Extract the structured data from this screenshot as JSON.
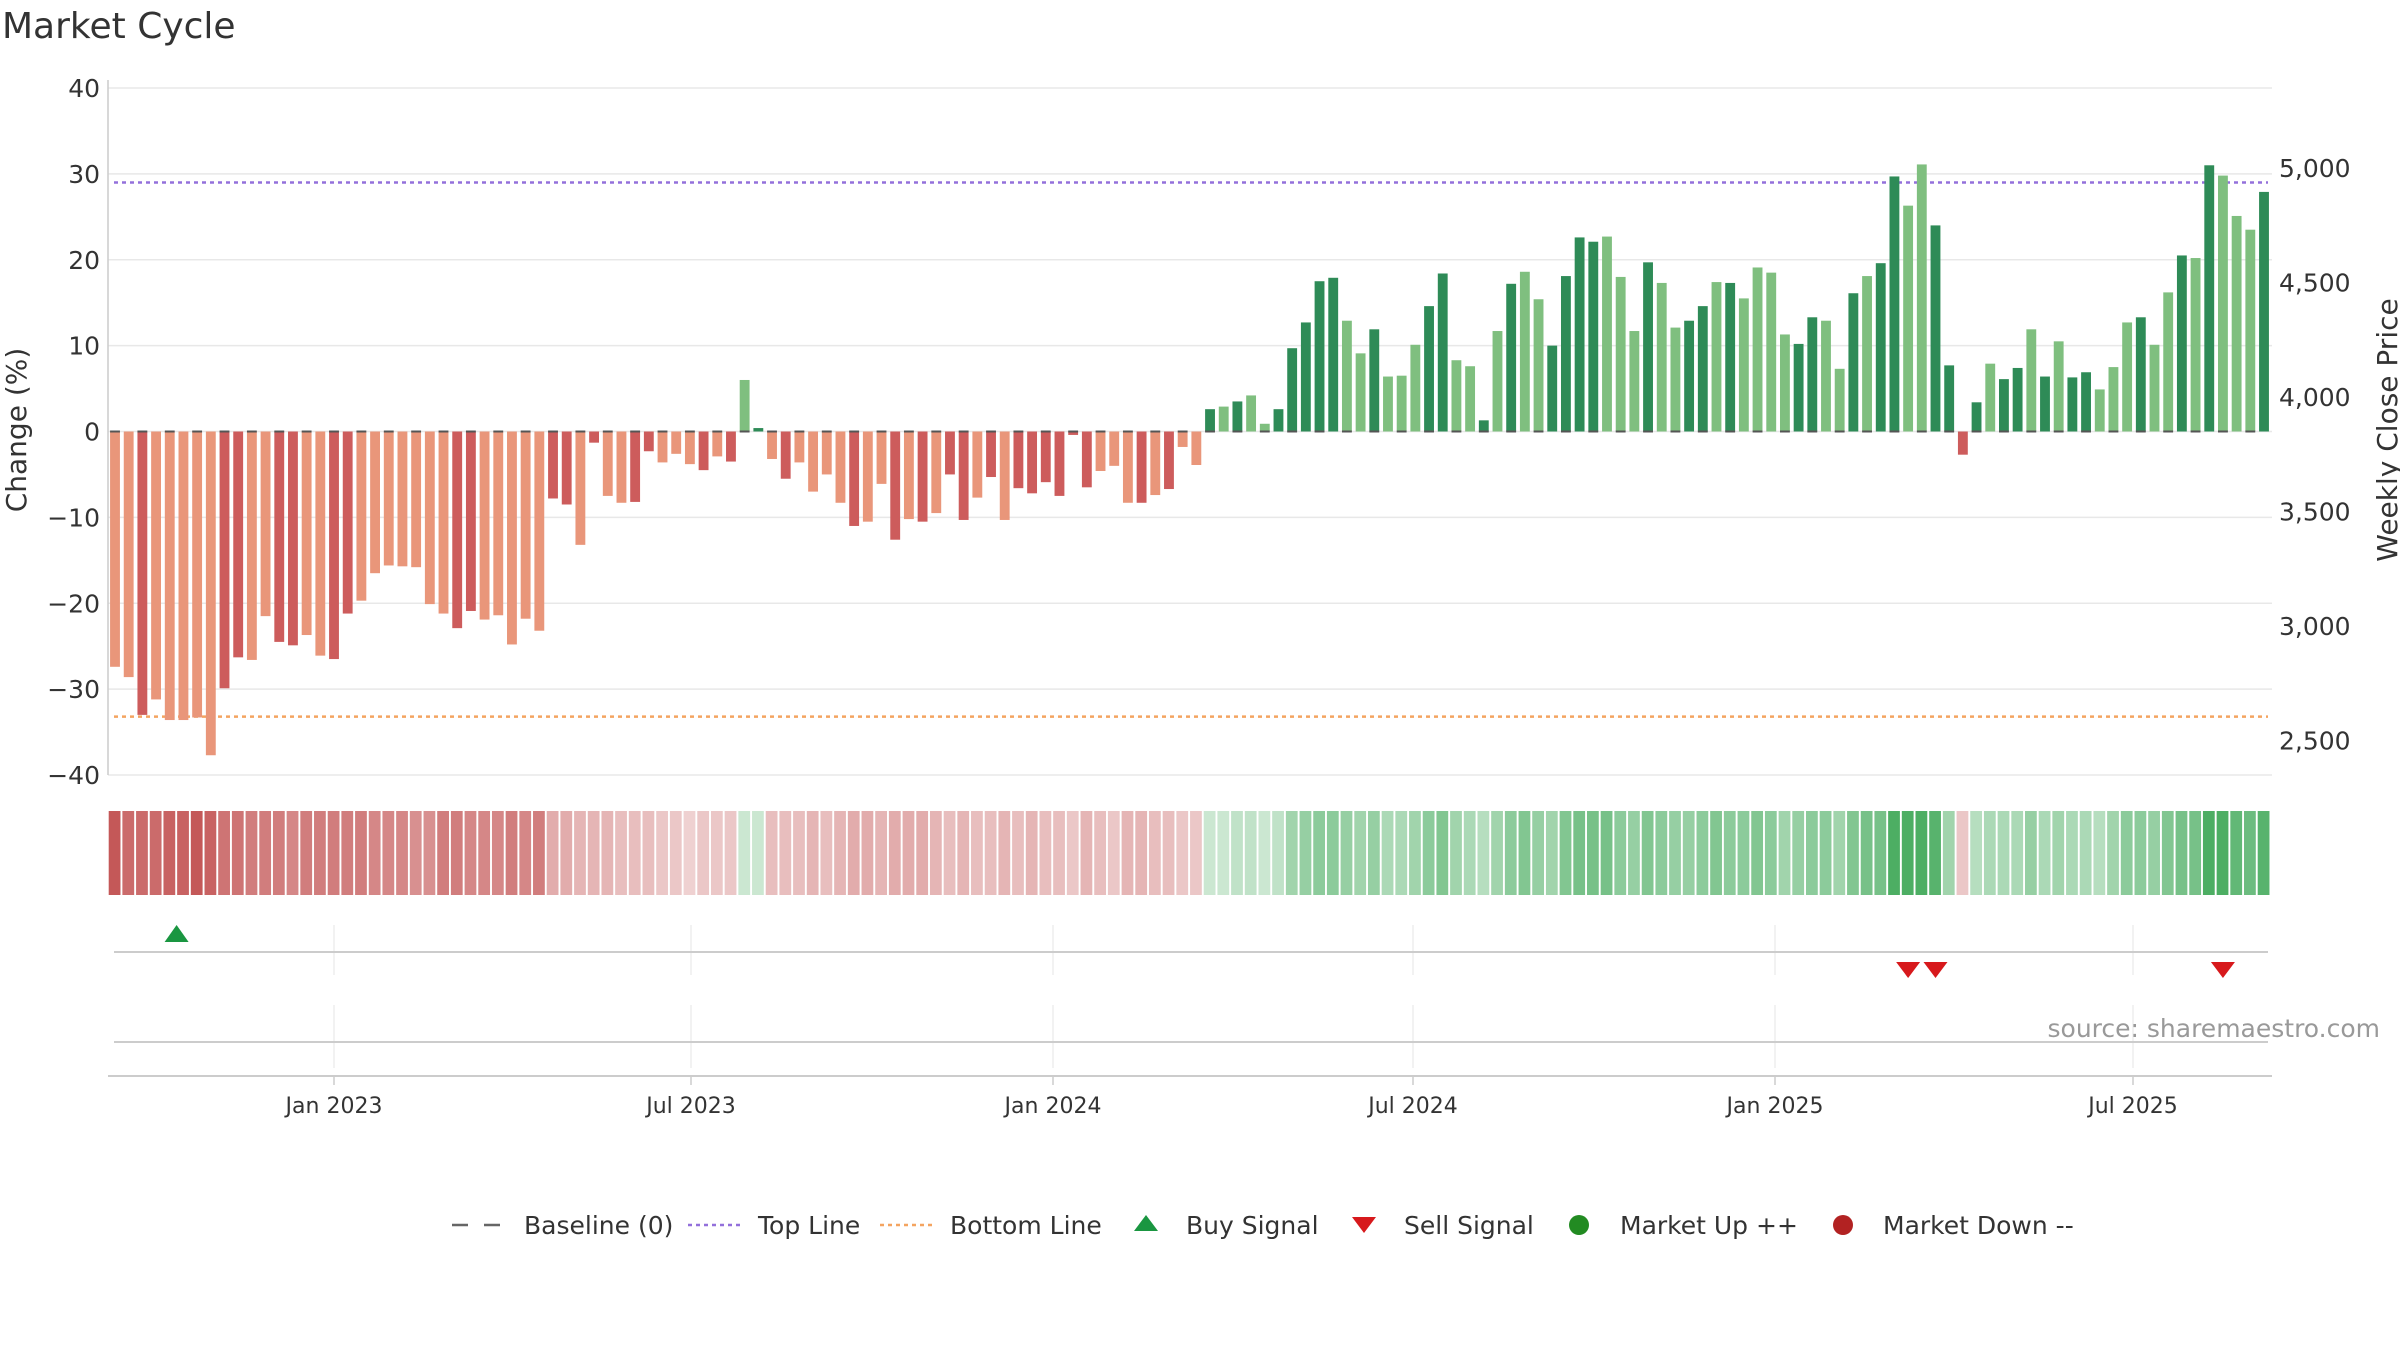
{
  "title": "Market Cycle",
  "source": "source: sharemaestro.com",
  "colors": {
    "up_strong": "#2e8b57",
    "up_light": "#7fbf7f",
    "down_strong": "#cd5c5c",
    "down_light": "#e9967a",
    "top_line": "#9370db",
    "bottom_line": "#f4a460",
    "buy": "#1a9641",
    "sell": "#d7191c",
    "up_dot": "#228b22",
    "down_dot": "#b22222"
  },
  "chart_data": {
    "type": "bar",
    "title": "Market Cycle",
    "ylabel": "Change (%)",
    "y2label": "Weekly Close Price",
    "ylim": [
      -40,
      40
    ],
    "y2lim": [
      2350,
      5350
    ],
    "yticks": [
      "40",
      "30",
      "20",
      "10",
      "0",
      "−10",
      "−20",
      "−30",
      "−40"
    ],
    "y2ticks": [
      "5,000",
      "4,500",
      "4,000",
      "3,500",
      "3,000",
      "2,500"
    ],
    "xticks": [
      "Jan 2023",
      "Jul 2023",
      "Jan 2024",
      "Jul 2024",
      "Jan 2025",
      "Jul 2025"
    ],
    "top_line": 29,
    "bottom_line": -33.2,
    "values": [
      -27.4,
      -28.6,
      -33,
      -31.2,
      -33.6,
      -33.6,
      -33.3,
      -37.7,
      -29.9,
      -26.3,
      -26.6,
      -21.5,
      -24.5,
      -24.9,
      -23.7,
      -26.1,
      -26.5,
      -21.2,
      -19.7,
      -16.5,
      -15.6,
      -15.7,
      -15.8,
      -20.1,
      -21.2,
      -22.9,
      -20.9,
      -21.9,
      -21.4,
      -24.8,
      -21.8,
      -23.2,
      -7.8,
      -8.5,
      -13.2,
      -1.3,
      -7.5,
      -8.3,
      -8.2,
      -2.3,
      -3.6,
      -2.6,
      -3.8,
      -4.5,
      -2.9,
      -3.5,
      6,
      0.4,
      -3.2,
      -5.5,
      -3.6,
      -7,
      -5,
      -8.3,
      -11,
      -10.5,
      -6.1,
      -12.6,
      -10.2,
      -10.5,
      -9.5,
      -5,
      -10.3,
      -7.7,
      -5.3,
      -10.3,
      -6.6,
      -7.2,
      -5.9,
      -7.5,
      -0.4,
      -6.5,
      -4.6,
      -4,
      -8.3,
      -8.3,
      -7.4,
      -6.7,
      -1.8,
      -3.9,
      2.6,
      2.9,
      3.5,
      4.2,
      0.9,
      2.6,
      9.7,
      12.7,
      17.5,
      17.9,
      12.9,
      9.1,
      11.9,
      6.4,
      6.5,
      10.1,
      14.6,
      18.4,
      8.3,
      7.6,
      1.3,
      11.7,
      17.2,
      18.6,
      15.4,
      10,
      18.1,
      22.6,
      22.1,
      22.7,
      18,
      11.7,
      19.7,
      17.3,
      12.1,
      12.9,
      14.6,
      17.4,
      17.3,
      15.5,
      19.1,
      18.5,
      11.3,
      10.2,
      13.3,
      12.9,
      7.3,
      16.1,
      18.1,
      19.6,
      29.7,
      26.3,
      31.1,
      24,
      7.7,
      -2.7,
      3.4,
      7.9,
      6.1,
      7.4,
      11.9,
      6.4,
      10.5,
      6.3,
      6.9,
      4.9,
      7.5,
      12.7,
      13.3,
      10.1,
      16.2,
      20.5,
      20.2,
      31,
      29.8,
      25.1,
      23.5,
      27.9
    ],
    "light_flags": "110111110011001100111111100111110010110011101010101111011010100101000000111010110101100000110111001101011000011101100101111001101001100001001010011101101011101000010011110",
    "color_band_levels": [
      0.9,
      0.8,
      0.8,
      0.8,
      0.85,
      0.85,
      0.9,
      0.85,
      0.75,
      0.75,
      0.7,
      0.7,
      0.7,
      0.65,
      0.7,
      0.7,
      0.7,
      0.7,
      0.7,
      0.65,
      0.65,
      0.65,
      0.6,
      0.6,
      0.7,
      0.7,
      0.65,
      0.65,
      0.65,
      0.7,
      0.65,
      0.7,
      0.45,
      0.45,
      0.4,
      0.4,
      0.4,
      0.35,
      0.35,
      0.35,
      0.3,
      0.3,
      0.25,
      0.3,
      0.3,
      0.3,
      0.25,
      0.25,
      0.35,
      0.35,
      0.35,
      0.4,
      0.35,
      0.4,
      0.45,
      0.45,
      0.4,
      0.45,
      0.45,
      0.45,
      0.4,
      0.35,
      0.4,
      0.35,
      0.35,
      0.4,
      0.35,
      0.4,
      0.35,
      0.35,
      0.3,
      0.4,
      0.35,
      0.3,
      0.4,
      0.4,
      0.35,
      0.35,
      0.3,
      0.3,
      0.25,
      0.25,
      0.3,
      0.3,
      0.25,
      0.3,
      0.45,
      0.5,
      0.55,
      0.55,
      0.5,
      0.45,
      0.5,
      0.4,
      0.4,
      0.45,
      0.55,
      0.6,
      0.45,
      0.4,
      0.35,
      0.45,
      0.55,
      0.6,
      0.5,
      0.45,
      0.6,
      0.65,
      0.65,
      0.65,
      0.55,
      0.5,
      0.6,
      0.55,
      0.5,
      0.5,
      0.55,
      0.6,
      0.55,
      0.55,
      0.6,
      0.55,
      0.45,
      0.5,
      0.55,
      0.55,
      0.45,
      0.6,
      0.65,
      0.65,
      0.85,
      0.85,
      0.85,
      0.8,
      0.45,
      0.3,
      0.35,
      0.4,
      0.4,
      0.4,
      0.5,
      0.4,
      0.45,
      0.4,
      0.4,
      0.35,
      0.45,
      0.55,
      0.55,
      0.5,
      0.6,
      0.65,
      0.65,
      0.85,
      0.85,
      0.75,
      0.7,
      0.8
    ],
    "buy_signal_indices": [
      4
    ],
    "sell_signal_indices": [
      131,
      133,
      154
    ],
    "legend": [
      {
        "label": "Baseline (0)",
        "symbol": "dash"
      },
      {
        "label": "Top Line",
        "symbol": "dot-purple"
      },
      {
        "label": "Bottom Line",
        "symbol": "dot-orange"
      },
      {
        "label": "Buy Signal",
        "symbol": "triangle-up"
      },
      {
        "label": "Sell Signal",
        "symbol": "triangle-down"
      },
      {
        "label": "Market Up ++",
        "symbol": "dot-green"
      },
      {
        "label": "Market Down --",
        "symbol": "dot-red"
      }
    ]
  }
}
